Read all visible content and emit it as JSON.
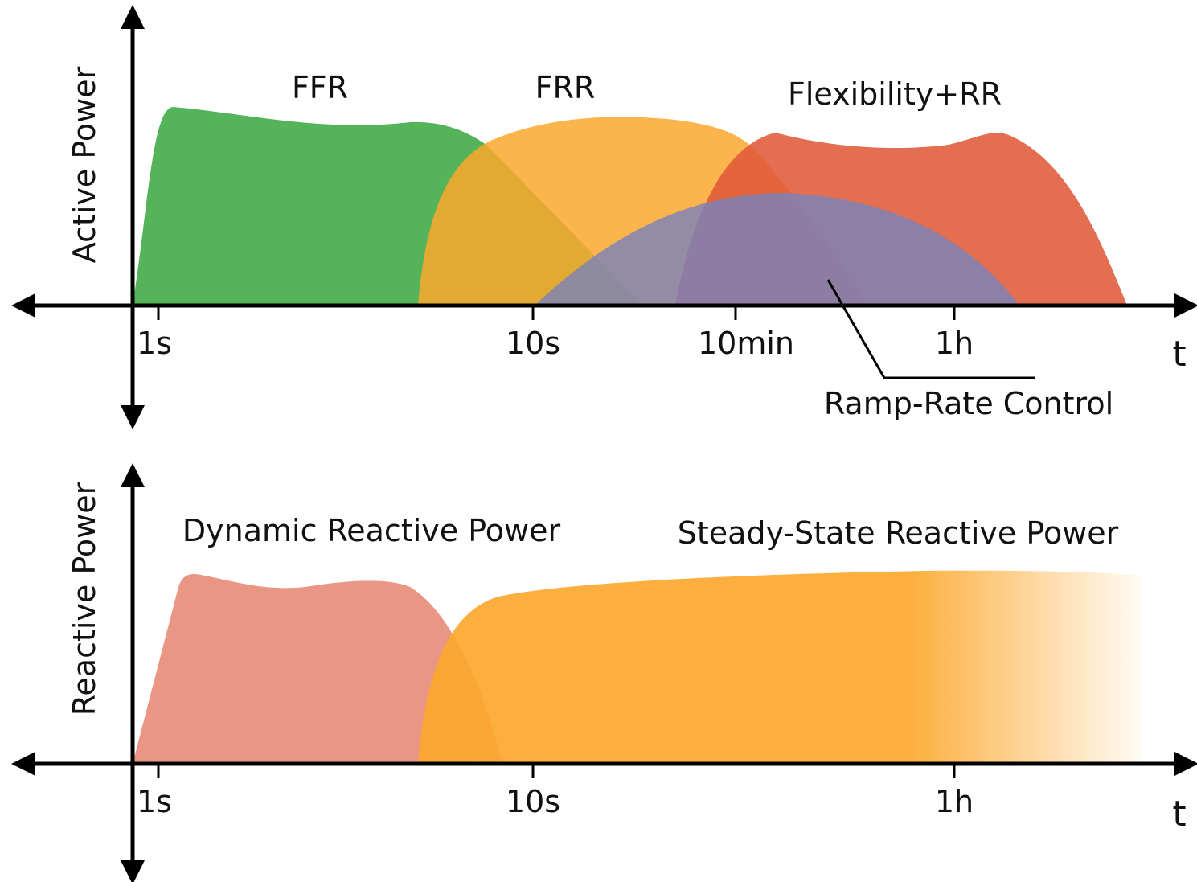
{
  "panels": [
    {
      "y_label": "Active Power",
      "x_label": "t",
      "ticks": [
        "1s",
        "10s",
        "10min",
        "1h"
      ],
      "regions": [
        "FFR",
        "FRR",
        "Flexibility+RR"
      ],
      "annotation": "Ramp-Rate Control"
    },
    {
      "y_label": "Reactive Power",
      "x_label": "t",
      "ticks": [
        "1s",
        "10s",
        "1h"
      ],
      "regions": [
        "Dynamic Reactive Power",
        "Steady-State Reactive Power"
      ]
    }
  ]
}
